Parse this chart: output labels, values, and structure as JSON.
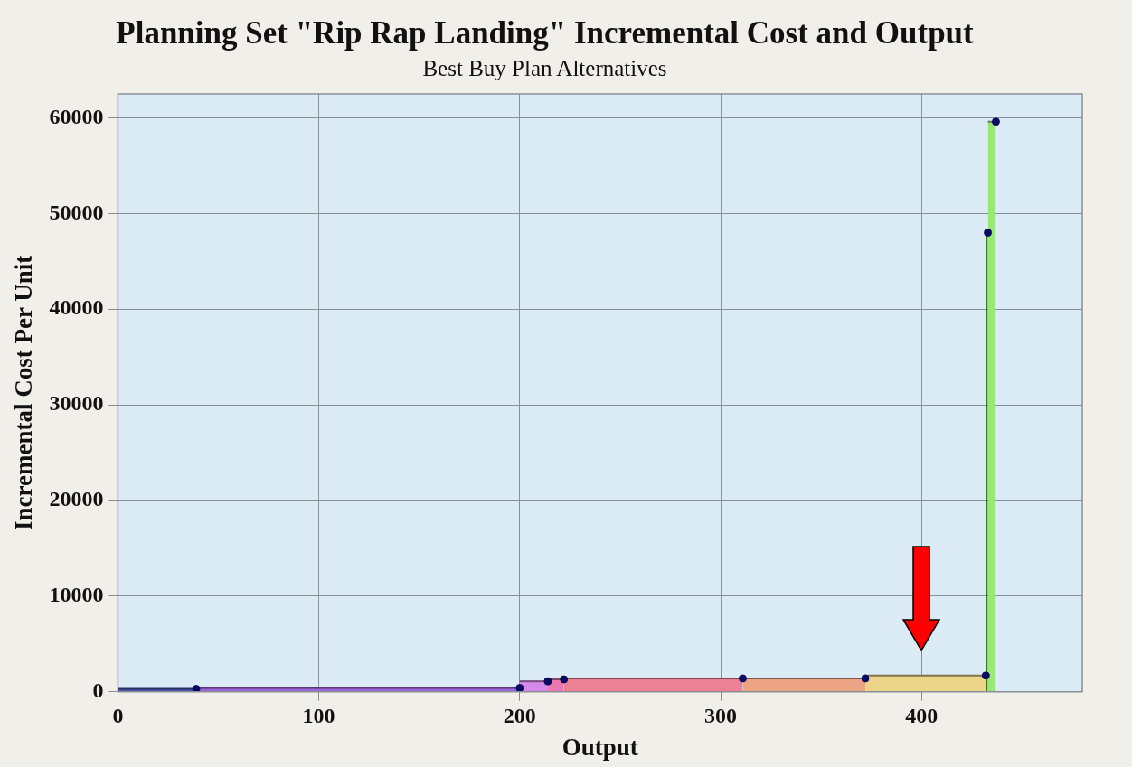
{
  "chart_data": {
    "type": "area",
    "title": "Planning Set \"Rip Rap Landing\" Incremental Cost and Output",
    "subtitle": "Best Buy Plan Alternatives",
    "xlabel": "Output",
    "ylabel": "Incremental Cost Per Unit",
    "xlim": [
      0,
      480
    ],
    "xticks": [
      0,
      100,
      200,
      300,
      400
    ],
    "ylim": [
      0,
      62500
    ],
    "yticks": [
      0,
      10000,
      20000,
      30000,
      40000,
      50000,
      60000
    ],
    "grid": true,
    "legend": false,
    "marker": "none",
    "series": [
      {
        "color": "#4a58b0",
        "x": [
          0,
          39
        ],
        "values": [
          300,
          300
        ]
      },
      {
        "color": "#9a66d8",
        "x": [
          39,
          200
        ],
        "values": [
          400,
          400
        ]
      },
      {
        "color": "#d488e8",
        "x": [
          200,
          214
        ],
        "values": [
          1100,
          1100
        ]
      },
      {
        "color": "#e878b0",
        "x": [
          214,
          222
        ],
        "values": [
          1300,
          1300
        ]
      },
      {
        "color": "#ec8094",
        "x": [
          222,
          311
        ],
        "values": [
          1400,
          1400
        ]
      },
      {
        "color": "#eca484",
        "x": [
          311,
          372
        ],
        "values": [
          1400,
          1400
        ]
      },
      {
        "color": "#ecd488",
        "x": [
          372,
          432
        ],
        "values": [
          1700,
          1700
        ]
      },
      {
        "color": "#3d7a22",
        "x": [
          432,
          433
        ],
        "values": [
          48000,
          48000
        ]
      },
      {
        "color": "#98e878",
        "x": [
          433,
          437
        ],
        "values": [
          59600,
          59600
        ]
      },
      {
        "type": "scatter",
        "marker": "circle",
        "color": "#0a0a60",
        "x": [
          39,
          200,
          214,
          222,
          311,
          372,
          432,
          433,
          437
        ],
        "values": [
          300,
          400,
          1100,
          1300,
          1400,
          1400,
          1700,
          48000,
          59600
        ]
      }
    ]
  }
}
